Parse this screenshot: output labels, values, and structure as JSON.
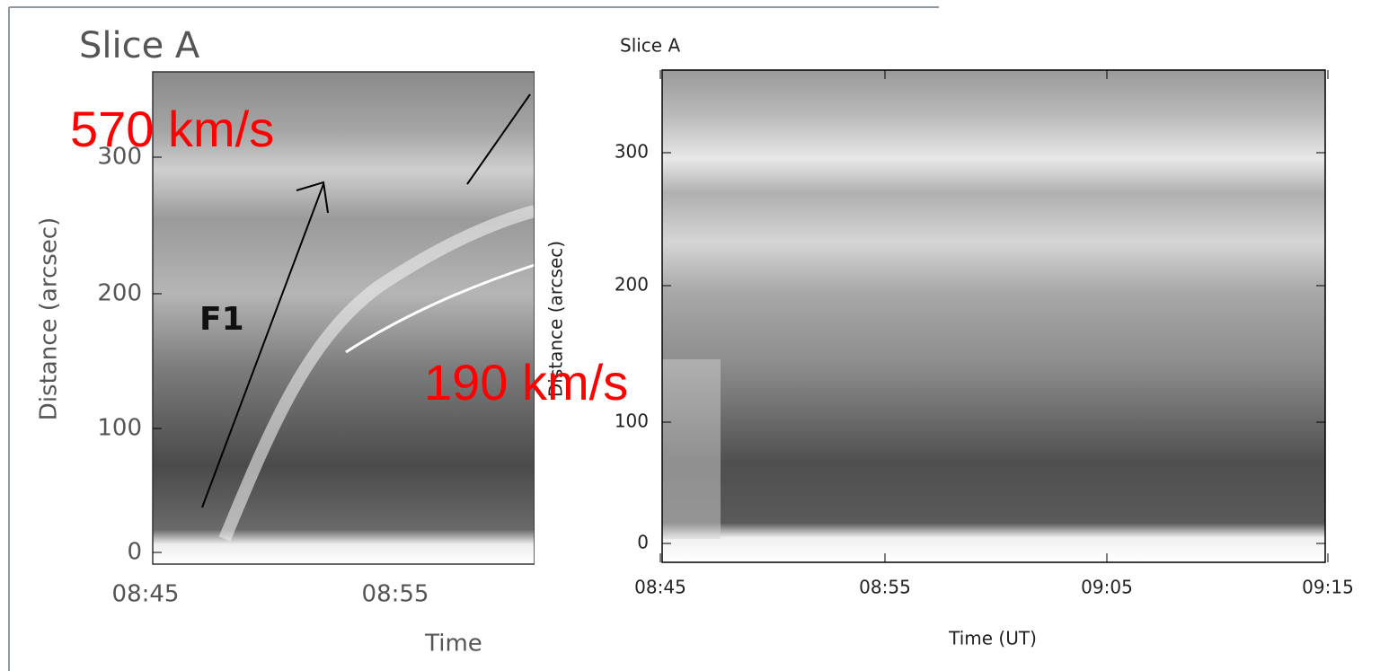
{
  "left_panel": {
    "title": "Slice A",
    "y_axis_label": "Distance (arcsec)",
    "x_axis_label": "Time",
    "y_ticks": [
      0,
      100,
      200,
      300
    ],
    "x_ticks": [
      "08:45",
      "08:55"
    ],
    "annotation": "F1"
  },
  "right_panel": {
    "title": "Slice A",
    "y_axis_label": "Distance (arcsec)",
    "x_axis_label": "Time (UT)",
    "y_ticks": [
      0,
      100,
      200,
      300
    ],
    "x_ticks": [
      "08:45",
      "08:55",
      "09:05",
      "09:15"
    ]
  },
  "speed_labels": [
    "570 km/s",
    "190 km/s"
  ]
}
